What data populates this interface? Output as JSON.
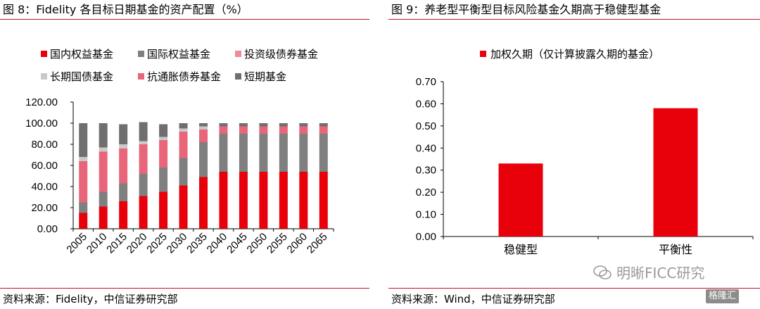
{
  "left": {
    "title": "图 8：Fidelity 各目标日期基金的资产配置（%）",
    "source": "资料来源：Fidelity，中信证券研究部"
  },
  "right": {
    "title": "图 9：养老型平衡型目标风险基金久期高于稳健型基金",
    "source": "资料来源：Wind，中信证券研究部"
  },
  "watermark": {
    "text": "明晰FICC研究",
    "badge": "格隆汇"
  },
  "chart_data": [
    {
      "type": "bar",
      "stacked": true,
      "categories": [
        "2005",
        "2010",
        "2015",
        "2020",
        "2025",
        "2030",
        "2035",
        "2040",
        "2045",
        "2050",
        "2055",
        "2060",
        "2065"
      ],
      "series": [
        {
          "name": "国内权益基金",
          "color": "#e8000b",
          "values": [
            15,
            21,
            26,
            31,
            35,
            41,
            49,
            54,
            54,
            54,
            54,
            54,
            54
          ]
        },
        {
          "name": "国际权益基金",
          "color": "#7f7f7f",
          "values": [
            10,
            14,
            17,
            21,
            23,
            26,
            33,
            36,
            36,
            36,
            36,
            36,
            36
          ]
        },
        {
          "name": "投资级债券基金",
          "color": "#f08a9a",
          "values": [
            0,
            0,
            0,
            0,
            0,
            0,
            0,
            0,
            0,
            0,
            0,
            0,
            0
          ]
        },
        {
          "name": "长期国债基金",
          "color": "#c9c9c9",
          "values": [
            4,
            4,
            4,
            3,
            3,
            3,
            3,
            0,
            0,
            0,
            0,
            0,
            0
          ]
        },
        {
          "name": "抗通胀债券基金",
          "color": "#e8657a",
          "values": [
            39,
            38,
            33,
            28,
            26,
            25,
            12,
            7,
            7,
            7,
            7,
            7,
            7
          ]
        },
        {
          "name": "短期基金",
          "color": "#6f6f6f",
          "values": [
            32,
            23,
            19,
            18,
            12,
            5,
            3,
            3,
            3,
            3,
            3,
            3,
            3
          ]
        }
      ],
      "stack_order": [
        "国内权益基金",
        "国际权益基金",
        "抗通胀债券基金",
        "长期国债基金",
        "投资级债券基金",
        "短期基金"
      ],
      "legend": [
        "国内权益基金",
        "国际权益基金",
        "投资级债券基金",
        "长期国债基金",
        "抗通胀债券基金",
        "短期基金"
      ],
      "yticks": [
        "0.00",
        "20.00",
        "40.00",
        "60.00",
        "80.00",
        "100.00",
        "120.00"
      ],
      "ylim": [
        0,
        120
      ],
      "xlabel": "",
      "ylabel": "",
      "grid": false,
      "legend_position": "top"
    },
    {
      "type": "bar",
      "categories": [
        "稳健型",
        "平衡性"
      ],
      "series": [
        {
          "name": "加权久期（仅计算披露久期的基金）",
          "color": "#e8000b",
          "values": [
            0.33,
            0.58
          ]
        }
      ],
      "yticks": [
        "0.00",
        "0.10",
        "0.20",
        "0.30",
        "0.40",
        "0.50",
        "0.60",
        "0.70"
      ],
      "ylim": [
        0,
        0.7
      ],
      "xlabel": "",
      "ylabel": "",
      "grid": false,
      "legend_position": "top"
    }
  ]
}
